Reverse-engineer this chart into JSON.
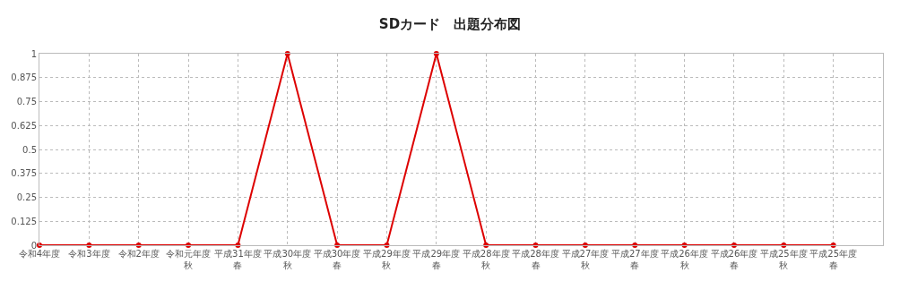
{
  "chart_data": {
    "type": "line",
    "title": "SDカード　出題分布図",
    "categories": [
      "令和4年度",
      "令和3年度",
      "令和2年度",
      "令和元年度秋",
      "平成31年度春",
      "平成30年度秋",
      "平成30年度春",
      "平成29年度秋",
      "平成29年度春",
      "平成28年度秋",
      "平成28年度春",
      "平成27年度秋",
      "平成27年度春",
      "平成26年度秋",
      "平成26年度春",
      "平成25年度秋",
      "平成25年度春"
    ],
    "series": [
      {
        "color": "#dd0000",
        "values": [
          0,
          0,
          0,
          0,
          0,
          1,
          0,
          0,
          1,
          0,
          0,
          0,
          0,
          0,
          0,
          0,
          0
        ]
      }
    ],
    "ylim": [
      0,
      1
    ],
    "yticks": [
      0,
      0.125,
      0.25,
      0.375,
      0.5,
      0.625,
      0.75,
      0.875,
      1
    ],
    "grid": true,
    "marker": "circle",
    "line_style": "solid",
    "legend": false
  }
}
